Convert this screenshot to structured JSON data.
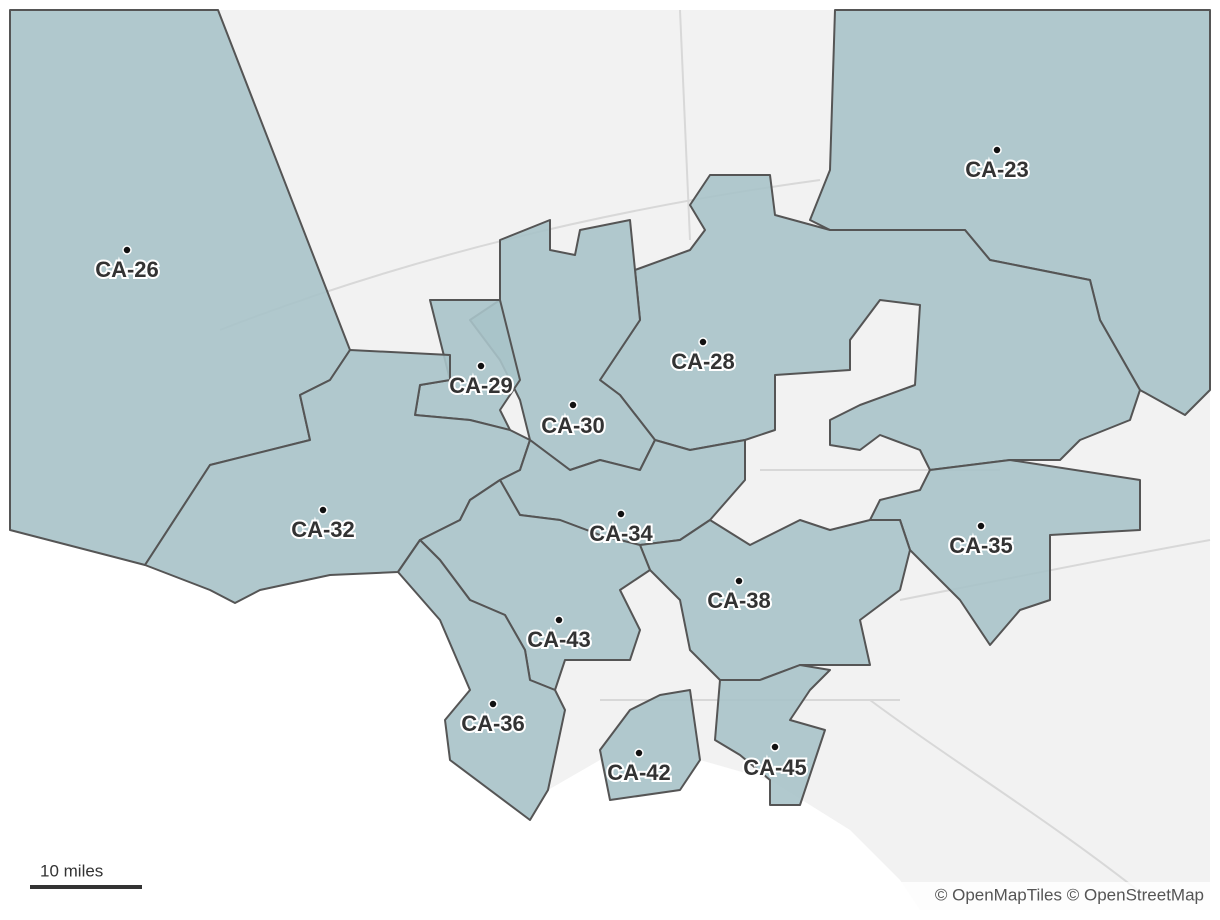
{
  "districts": [
    "CA-26",
    "CA-23",
    "CA-29",
    "CA-28",
    "CA-30",
    "CA-32",
    "CA-34",
    "CA-35",
    "CA-38",
    "CA-43",
    "CA-36",
    "CA-42",
    "CA-45"
  ],
  "scale_bar": {
    "label": "10 miles"
  },
  "attribution": "© OpenMapTiles © OpenStreetMap"
}
